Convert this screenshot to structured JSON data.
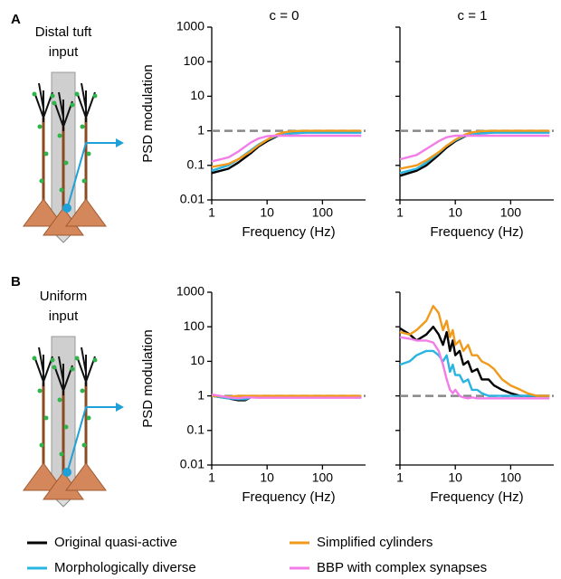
{
  "panel_labels": [
    "A",
    "B"
  ],
  "input_labels": [
    [
      "Distal tuft",
      "input"
    ],
    [
      "Uniform",
      "input"
    ]
  ],
  "chart_data": [
    {
      "type": "line",
      "title": "c = 0",
      "xlabel": "Frequency (Hz)",
      "ylabel": "PSD modulation",
      "log_x": true,
      "log_y": true,
      "xlim": [
        1,
        600
      ],
      "ylim": [
        0.01,
        1000
      ],
      "xticks": [
        1,
        10,
        100
      ],
      "yticks": [
        0.01,
        0.1,
        1,
        10,
        100,
        1000
      ],
      "ytick_labels": true,
      "hline": 1,
      "x": [
        1,
        2,
        3,
        5,
        7,
        10,
        15,
        20,
        30,
        50,
        100,
        200,
        500
      ],
      "series": [
        {
          "name": "Original quasi-active",
          "color": "#000000",
          "values": [
            0.06,
            0.08,
            0.12,
            0.22,
            0.35,
            0.5,
            0.7,
            0.8,
            0.85,
            0.9,
            0.92,
            0.92,
            0.92
          ]
        },
        {
          "name": "Morphologically diverse",
          "color": "#2ab4e0",
          "values": [
            0.07,
            0.1,
            0.15,
            0.27,
            0.4,
            0.55,
            0.72,
            0.8,
            0.85,
            0.88,
            0.88,
            0.88,
            0.88
          ]
        },
        {
          "name": "Simplified cylinders",
          "color": "#f09a1c",
          "values": [
            0.09,
            0.11,
            0.15,
            0.25,
            0.38,
            0.55,
            0.78,
            0.9,
            0.98,
            1,
            1,
            1,
            1
          ]
        },
        {
          "name": "BBP with complex synapses",
          "color": "#f27de8",
          "values": [
            0.13,
            0.17,
            0.25,
            0.45,
            0.6,
            0.7,
            0.72,
            0.72,
            0.72,
            0.72,
            0.72,
            0.72,
            0.72
          ]
        }
      ]
    },
    {
      "type": "line",
      "title": "c = 1",
      "xlabel": "Frequency (Hz)",
      "log_x": true,
      "log_y": true,
      "xlim": [
        1,
        600
      ],
      "ylim": [
        0.01,
        1000
      ],
      "xticks": [
        1,
        10,
        100
      ],
      "yticks": [
        0.01,
        0.1,
        1,
        10,
        100,
        1000
      ],
      "ytick_labels": false,
      "hline": 1,
      "x": [
        1,
        2,
        3,
        5,
        7,
        10,
        15,
        20,
        30,
        50,
        100,
        200,
        500
      ],
      "series": [
        {
          "name": "Original quasi-active",
          "color": "#000000",
          "values": [
            0.05,
            0.07,
            0.1,
            0.2,
            0.33,
            0.5,
            0.7,
            0.8,
            0.85,
            0.9,
            0.92,
            0.92,
            0.92
          ]
        },
        {
          "name": "Morphologically diverse",
          "color": "#2ab4e0",
          "values": [
            0.06,
            0.08,
            0.12,
            0.23,
            0.37,
            0.53,
            0.72,
            0.8,
            0.85,
            0.88,
            0.88,
            0.88,
            0.88
          ]
        },
        {
          "name": "Simplified cylinders",
          "color": "#f09a1c",
          "values": [
            0.08,
            0.1,
            0.14,
            0.24,
            0.37,
            0.55,
            0.78,
            0.9,
            0.98,
            1,
            1,
            1,
            1
          ]
        },
        {
          "name": "BBP with complex synapses",
          "color": "#f27de8",
          "values": [
            0.15,
            0.2,
            0.3,
            0.5,
            0.65,
            0.72,
            0.72,
            0.72,
            0.72,
            0.72,
            0.72,
            0.72,
            0.72
          ]
        }
      ]
    },
    {
      "type": "line",
      "xlabel": "Frequency (Hz)",
      "ylabel": "PSD modulation",
      "log_x": true,
      "log_y": true,
      "xlim": [
        1,
        600
      ],
      "ylim": [
        0.01,
        1000
      ],
      "xticks": [
        1,
        10,
        100
      ],
      "yticks": [
        0.01,
        0.1,
        1,
        10,
        100,
        1000
      ],
      "ytick_labels": true,
      "hline": 1,
      "x": [
        1,
        2,
        3,
        4,
        5,
        7,
        10,
        20,
        50,
        100,
        200,
        500
      ],
      "series": [
        {
          "name": "Original quasi-active",
          "color": "#000000",
          "values": [
            1,
            0.85,
            0.75,
            0.75,
            0.9,
            0.95,
            0.95,
            0.95,
            0.95,
            0.95,
            0.95,
            0.95
          ]
        },
        {
          "name": "Morphologically diverse",
          "color": "#2ab4e0",
          "values": [
            1,
            0.85,
            0.8,
            0.8,
            0.9,
            0.9,
            0.9,
            0.9,
            0.9,
            0.9,
            0.9,
            0.9
          ]
        },
        {
          "name": "Simplified cylinders",
          "color": "#f09a1c",
          "values": [
            1,
            0.95,
            1,
            1,
            1,
            1,
            1,
            1,
            1,
            1,
            1,
            1
          ]
        },
        {
          "name": "BBP with complex synapses",
          "color": "#f27de8",
          "values": [
            1.1,
            0.9,
            0.85,
            0.9,
            0.9,
            0.88,
            0.88,
            0.88,
            0.88,
            0.88,
            0.88,
            0.88
          ]
        }
      ]
    },
    {
      "type": "line",
      "xlabel": "Frequency (Hz)",
      "log_x": true,
      "log_y": true,
      "xlim": [
        1,
        600
      ],
      "ylim": [
        0.01,
        1000
      ],
      "xticks": [
        1,
        10,
        100
      ],
      "yticks": [
        0.01,
        0.1,
        1,
        10,
        100,
        1000
      ],
      "ytick_labels": false,
      "hline": 1,
      "x": [
        1,
        1.5,
        2,
        3,
        4,
        5,
        6,
        7,
        8,
        9,
        10,
        12,
        14,
        17,
        20,
        25,
        30,
        40,
        50,
        70,
        100,
        150,
        200,
        300,
        500
      ],
      "series": [
        {
          "name": "Original quasi-active",
          "color": "#000000",
          "values": [
            90,
            60,
            40,
            60,
            100,
            60,
            30,
            70,
            20,
            40,
            15,
            20,
            8,
            10,
            5,
            6,
            3,
            3,
            2,
            1.5,
            1.2,
            1,
            1,
            1,
            1
          ]
        },
        {
          "name": "Morphologically diverse",
          "color": "#2ab4e0",
          "values": [
            8,
            10,
            15,
            20,
            20,
            15,
            10,
            15,
            5,
            8,
            4,
            4,
            2.5,
            3,
            1.5,
            1.5,
            1.2,
            1,
            1,
            1,
            1,
            1,
            1,
            1,
            1
          ]
        },
        {
          "name": "Simplified cylinders",
          "color": "#f09a1c",
          "values": [
            70,
            60,
            80,
            150,
            400,
            250,
            80,
            150,
            50,
            80,
            30,
            40,
            20,
            30,
            15,
            15,
            10,
            8,
            6,
            3,
            2,
            1.5,
            1.2,
            1,
            1
          ]
        },
        {
          "name": "BBP with complex synapses",
          "color": "#f27de8",
          "values": [
            50,
            45,
            40,
            40,
            35,
            20,
            8,
            3,
            1.5,
            1.2,
            1.5,
            1,
            0.9,
            0.85,
            0.9,
            0.85,
            0.85,
            0.85,
            0.85,
            0.85,
            0.85,
            0.85,
            0.85,
            0.85,
            0.85
          ]
        }
      ]
    }
  ]
}
